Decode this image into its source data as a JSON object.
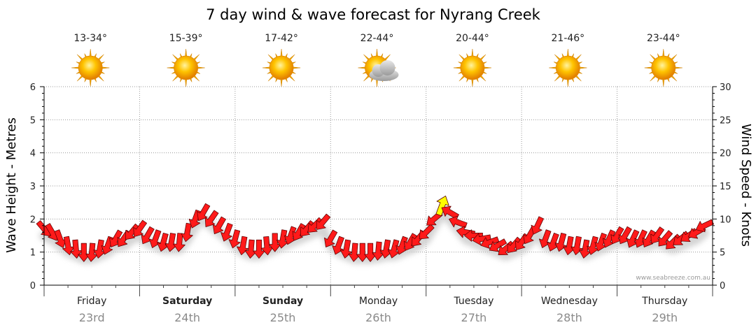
{
  "chart_data": {
    "type": "line",
    "title": "7 day wind & wave forecast for Nyrang Creek",
    "ylabel_left": "Wave Height - Metres",
    "ylabel_right": "Wind Speed - Knots",
    "ylim_left": [
      0,
      6
    ],
    "ylim_right": [
      0,
      30
    ],
    "yticks_left": [
      "0",
      "1",
      "2",
      "3",
      "4",
      "5",
      "6"
    ],
    "yticks_right": [
      "0",
      "5",
      "10",
      "15",
      "20",
      "25",
      "30"
    ],
    "watermark": "www.seabreeze.com.au",
    "days": [
      {
        "name": "Friday",
        "date": "23rd",
        "temp": "13-34°",
        "icon": "sun-icon",
        "bold": false
      },
      {
        "name": "Saturday",
        "date": "24th",
        "temp": "15-39°",
        "icon": "sun-icon",
        "bold": true
      },
      {
        "name": "Sunday",
        "date": "25th",
        "temp": "17-42°",
        "icon": "sun-icon",
        "bold": true
      },
      {
        "name": "Monday",
        "date": "26th",
        "temp": "22-44°",
        "icon": "partly-cloudy-icon",
        "bold": false
      },
      {
        "name": "Tuesday",
        "date": "27th",
        "temp": "20-44°",
        "icon": "sun-icon",
        "bold": false
      },
      {
        "name": "Wednesday",
        "date": "28th",
        "temp": "21-46°",
        "icon": "sun-icon",
        "bold": false
      },
      {
        "name": "Thursday",
        "date": "29th",
        "temp": "23-44°",
        "icon": "sun-icon",
        "bold": false
      }
    ],
    "series": [
      {
        "name": "Wind Speed (knots)",
        "color": "#ff1a1a",
        "highlight_color": "#ffff00",
        "highlight_index": 50,
        "x_hours": [
          0,
          2,
          4,
          6,
          8,
          10,
          12,
          14,
          16,
          18,
          20,
          22,
          24,
          26,
          28,
          30,
          32,
          34,
          36,
          38,
          40,
          42,
          44,
          46,
          48,
          50,
          52,
          54,
          56,
          58,
          60,
          62,
          64,
          66,
          68,
          70,
          72,
          74,
          76,
          78,
          80,
          82,
          84,
          86,
          88,
          90,
          92,
          94,
          96,
          98,
          100,
          102,
          104,
          106,
          108,
          110,
          112,
          114,
          116,
          118,
          120,
          122,
          124,
          126,
          128,
          130,
          132,
          134,
          136,
          138,
          140,
          142,
          144,
          146,
          148,
          150,
          152,
          154,
          156,
          158,
          160,
          162,
          164,
          166
        ],
        "values": [
          8.5,
          8,
          7,
          6,
          5.5,
          5,
          5,
          5.5,
          6,
          7,
          7,
          8,
          8.5,
          7.5,
          7,
          6.5,
          6.5,
          6.5,
          8,
          10,
          11,
          10,
          9,
          8,
          7,
          6,
          5.5,
          5.5,
          6,
          6.5,
          7,
          7.5,
          8,
          8.5,
          9,
          9.5,
          7,
          6,
          5.5,
          5,
          5,
          5,
          5.2,
          5.5,
          5.5,
          6,
          6.5,
          7,
          8,
          10,
          12,
          11,
          9.5,
          8,
          7.5,
          7,
          6.5,
          6,
          5.5,
          6,
          6.5,
          7.5,
          9,
          7,
          6.5,
          6.5,
          6,
          6,
          5.5,
          6,
          6.5,
          7,
          7.5,
          7.5,
          7,
          7,
          7,
          7.5,
          7,
          6.5,
          7,
          7.5,
          8,
          9
        ],
        "directions_deg": [
          140,
          150,
          160,
          170,
          175,
          180,
          185,
          190,
          200,
          210,
          215,
          220,
          215,
          210,
          200,
          195,
          190,
          185,
          190,
          200,
          210,
          215,
          210,
          200,
          195,
          190,
          185,
          180,
          175,
          180,
          190,
          200,
          210,
          220,
          225,
          220,
          210,
          200,
          190,
          185,
          180,
          180,
          185,
          190,
          195,
          200,
          210,
          220,
          225,
          230,
          20,
          300,
          290,
          280,
          270,
          260,
          250,
          240,
          230,
          220,
          215,
          210,
          205,
          200,
          200,
          195,
          190,
          190,
          190,
          195,
          200,
          205,
          210,
          210,
          205,
          205,
          210,
          215,
          220,
          225,
          230,
          235,
          240,
          245
        ]
      }
    ]
  }
}
